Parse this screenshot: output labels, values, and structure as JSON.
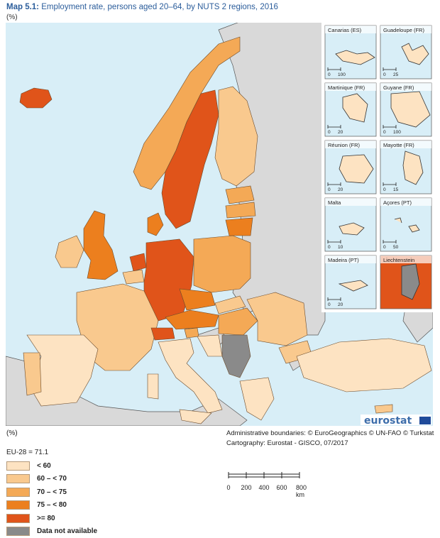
{
  "header": {
    "map_label": "Map 5.1:",
    "title": "Employment rate, persons aged 20–64, by NUTS 2 regions, 2016",
    "unit": "(%)"
  },
  "inset_labels": [
    "Canarias (ES)",
    "Guadeloupe (FR)",
    "Martinique (FR)",
    "Guyane (FR)",
    "Réunion (FR)",
    "Mayotte (FR)",
    "Malta",
    "Açores (PT)",
    "Madeira (PT)",
    "Liechtenstein"
  ],
  "inset_scales": [
    [
      "0",
      "100"
    ],
    [
      "0",
      "25"
    ],
    [
      "0",
      "20"
    ],
    [
      "0",
      "100"
    ],
    [
      "0",
      "20"
    ],
    [
      "0",
      "15"
    ],
    [
      "0",
      "10"
    ],
    [
      "0",
      "50"
    ],
    [
      "0",
      "20"
    ],
    []
  ],
  "logo": "eurostat",
  "unit_bottom": "(%)",
  "credits": {
    "line1": "Administrative boundaries: © EuroGeographics © UN-FAO © Turkstat",
    "line2": "Cartography: Eurostat - GISCO, 07/2017"
  },
  "legend": {
    "average": "EU-28 = 71.1",
    "classes": [
      {
        "label": "< 60",
        "color": "#fde3c2"
      },
      {
        "label": "60 – < 70",
        "color": "#f9c98e"
      },
      {
        "label": "70 – < 75",
        "color": "#f4a956"
      },
      {
        "label": "75 – < 80",
        "color": "#ec7f1e"
      },
      {
        "label": ">= 80",
        "color": "#e0541a"
      },
      {
        "label": "Data not available",
        "color": "#8a8a8a"
      }
    ]
  },
  "scale_bar": {
    "ticks": [
      "0",
      "200",
      "400",
      "600",
      "800 km"
    ]
  },
  "colors": {
    "sea": "#d8eef7",
    "nonEU": "#d9d9d9",
    "border": "#555555",
    "title": "#2b5d9b"
  }
}
